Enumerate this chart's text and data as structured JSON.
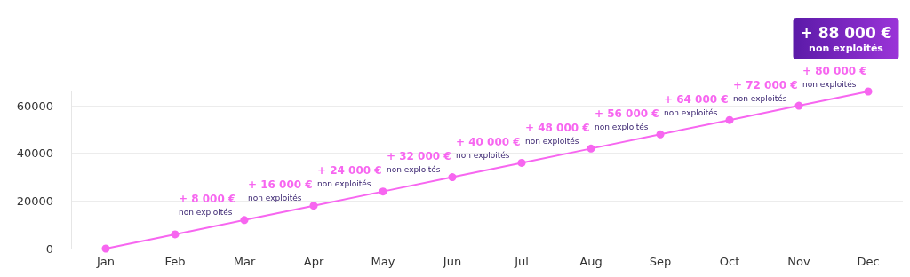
{
  "chart_data": {
    "type": "line",
    "categories": [
      "Jan",
      "Feb",
      "Mar",
      "Apr",
      "May",
      "Jun",
      "Jul",
      "Aug",
      "Sep",
      "Oct",
      "Nov",
      "Dec"
    ],
    "series": [
      {
        "color": "#f766f0",
        "values": [
          0,
          6000,
          12000,
          18000,
          24000,
          30000,
          36000,
          42000,
          48000,
          54000,
          60000,
          66000
        ]
      }
    ],
    "ylim": [
      0,
      66000
    ],
    "yticks": [
      0,
      20000,
      40000,
      60000
    ],
    "grid": "y",
    "marker": "circle",
    "line_style": "solid",
    "annotations": [
      {
        "text": "+ 8 000 €\nnon exploités",
        "x": "Feb",
        "y": 6000
      },
      {
        "text": "+ 16 000 €\nnon exploités",
        "x": "Mar",
        "y": 12000
      },
      {
        "text": "+ 24 000 €\nnon exploités",
        "x": "Apr",
        "y": 18000
      },
      {
        "text": "+ 32 000 €\nnon exploités",
        "x": "May",
        "y": 24000
      },
      {
        "text": "+ 40 000 €\nnon exploités",
        "x": "Jun",
        "y": 30000
      },
      {
        "text": "+ 48 000 €\nnon exploités",
        "x": "Jul",
        "y": 36000
      },
      {
        "text": "+ 56 000 €\nnon exploités",
        "x": "Aug",
        "y": 42000
      },
      {
        "text": "+ 64 000 €\nnon exploités",
        "x": "Sep",
        "y": 48000
      },
      {
        "text": "+ 72 000 €\nnon exploités",
        "x": "Oct",
        "y": 54000
      },
      {
        "text": "+ 80 000 €\nnon exploités",
        "x": "Nov",
        "y": 60000
      },
      {
        "text": "+ 88 000 €\nnon exploités",
        "x": "Dec",
        "y": 66000
      }
    ]
  }
}
